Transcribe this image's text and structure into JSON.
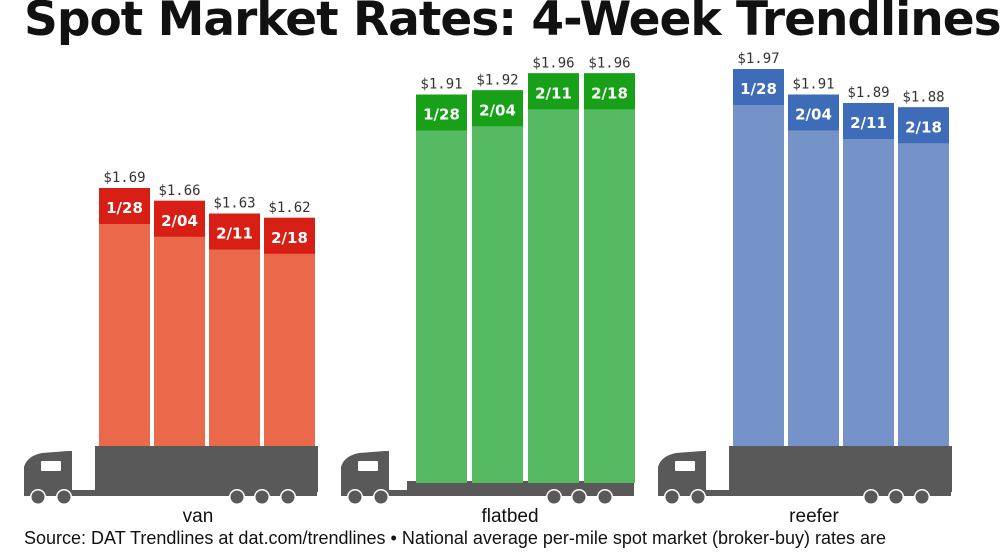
{
  "title": "Spot Market Rates: 4-Week Trendlines",
  "source": "Source: DAT Trendlines at dat.com/trendlines • National average per-mile spot market (broker-buy) rates are",
  "chart_data": [
    {
      "type": "bar",
      "name": "van",
      "categories": [
        "1/28",
        "2/04",
        "2/11",
        "2/18"
      ],
      "values": [
        1.69,
        1.66,
        1.63,
        1.62
      ],
      "value_labels": [
        "$1.69",
        "$1.66",
        "$1.63",
        "$1.62"
      ],
      "colors": {
        "bar": "#e9694a",
        "cap": "#d81f15"
      }
    },
    {
      "type": "bar",
      "name": "flatbed",
      "categories": [
        "1/28",
        "2/04",
        "2/11",
        "2/18"
      ],
      "values": [
        1.91,
        1.92,
        1.96,
        1.96
      ],
      "value_labels": [
        "$1.91",
        "$1.92",
        "$1.96",
        "$1.96"
      ],
      "colors": {
        "bar": "#55ba61",
        "cap": "#17a018"
      }
    },
    {
      "type": "bar",
      "name": "reefer",
      "categories": [
        "1/28",
        "2/04",
        "2/11",
        "2/18"
      ],
      "values": [
        1.97,
        1.91,
        1.89,
        1.88
      ],
      "value_labels": [
        "$1.97",
        "$1.91",
        "$1.89",
        "$1.88"
      ],
      "colors": {
        "bar": "#7593c9",
        "cap": "#3f6cb9"
      }
    }
  ],
  "colors": {
    "truck": "#595959",
    "title": "#111111"
  }
}
